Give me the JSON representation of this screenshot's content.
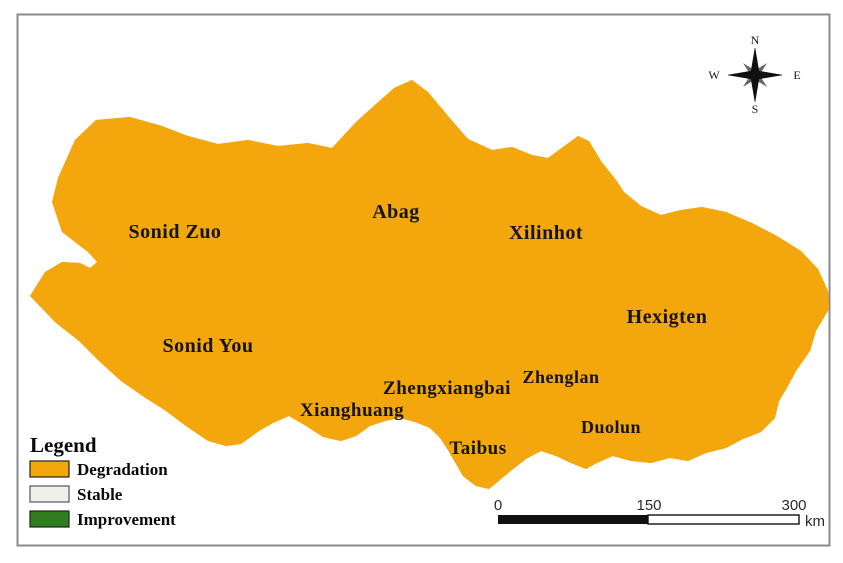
{
  "map": {
    "regions": [
      {
        "label": "Sonid Zuo"
      },
      {
        "label": "Sonid You"
      },
      {
        "label": "Abag"
      },
      {
        "label": "Xilinhot"
      },
      {
        "label": "Hexigten"
      },
      {
        "label": "Zhengxiangbai"
      },
      {
        "label": "Zhenglan"
      },
      {
        "label": "Xianghuang"
      },
      {
        "label": "Duolun"
      },
      {
        "label": "Taibus"
      }
    ]
  },
  "legend": {
    "title": "Legend",
    "items": [
      {
        "label": "Degradation",
        "color": "#F4A60D"
      },
      {
        "label": "Stable",
        "color": "#F0F0EB"
      },
      {
        "label": "Improvement",
        "color": "#2E7D1F"
      }
    ]
  },
  "compass": {
    "north": "N",
    "east": "E",
    "south": "S",
    "west": "W"
  },
  "scale_bar": {
    "tick_0": "0",
    "tick_150": "150",
    "tick_300": "300",
    "unit": "km"
  },
  "colors": {
    "degradation": "#F4A60D",
    "stable": "#F0F0EB",
    "improvement": "#2E7D1F",
    "boundary": "#6E4A1E",
    "outline": "#4A3410",
    "frame": "#8A8A8A"
  }
}
